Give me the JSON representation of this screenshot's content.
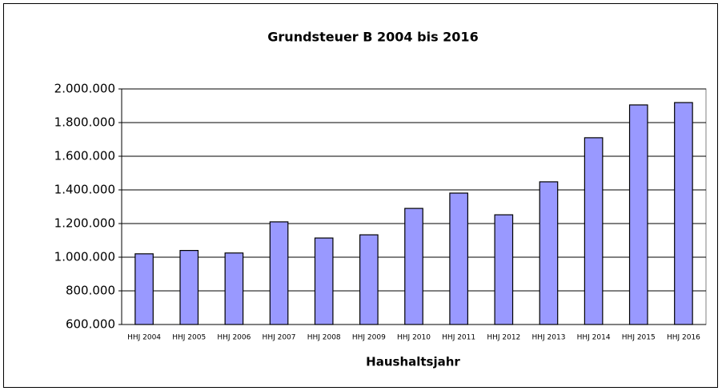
{
  "chart_data": {
    "type": "bar",
    "title": "Grundsteuer B 2004 bis 2016",
    "x_label": "Haushaltsjahr",
    "categories": [
      "HHJ 2004",
      "HHJ 2005",
      "HHJ 2006",
      "HHJ 2007",
      "HHJ 2008",
      "HHJ 2009",
      "HHJ 2010",
      "HHJ 2011",
      "HHJ 2012",
      "HHJ 2013",
      "HHJ 2014",
      "HHJ 2015",
      "HHJ 2016"
    ],
    "values": [
      1020000,
      1040000,
      1025000,
      1210000,
      1114000,
      1133000,
      1290000,
      1381000,
      1252000,
      1448000,
      1710000,
      1905000,
      1919000
    ],
    "color": "#9999ff",
    "ylim": [
      600000,
      2000000
    ],
    "yticks": [
      {
        "value": 600000,
        "label": "600.000"
      },
      {
        "value": 800000,
        "label": "800.000"
      },
      {
        "value": 1000000,
        "label": "1.000.000"
      },
      {
        "value": 1200000,
        "label": "1.200.000"
      },
      {
        "value": 1400000,
        "label": "1.400.000"
      },
      {
        "value": 1600000,
        "label": "1.600.000"
      },
      {
        "value": 1800000,
        "label": "1.800.000"
      },
      {
        "value": 2000000,
        "label": "2.000.000"
      }
    ],
    "grid": true
  }
}
